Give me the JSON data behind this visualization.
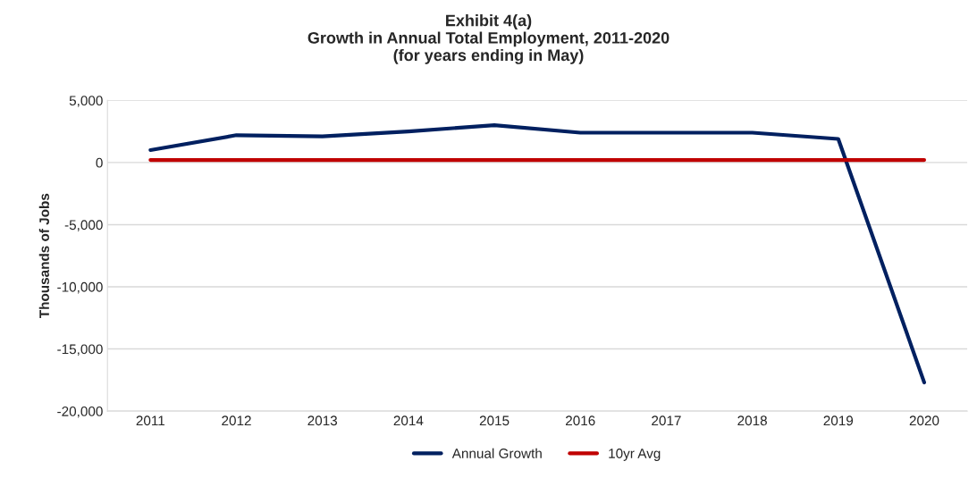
{
  "chart_data": {
    "type": "line",
    "title": "Exhibit 4(a)\nGrowth in Annual Total Employment, 2011-2020\n(for years ending in May)",
    "ylabel": "Thousands of Jobs",
    "categories": [
      "2011",
      "2012",
      "2013",
      "2014",
      "2015",
      "2016",
      "2017",
      "2018",
      "2019",
      "2020"
    ],
    "series": [
      {
        "name": "Annual Growth",
        "color": "#002060",
        "values": [
          1000,
          2200,
          2100,
          2500,
          3000,
          2400,
          2400,
          2400,
          1900,
          -17700
        ]
      },
      {
        "name": "10yr Avg",
        "color": "#c00000",
        "values": [
          200,
          200,
          200,
          200,
          200,
          200,
          200,
          200,
          200,
          200
        ]
      }
    ],
    "ylim": [
      -20000,
      5000
    ],
    "yticks": [
      {
        "value": -20000,
        "label": "-20,000"
      },
      {
        "value": -15000,
        "label": "-15,000"
      },
      {
        "value": -10000,
        "label": "-10,000"
      },
      {
        "value": -5000,
        "label": "-5,000"
      },
      0,
      {
        "value": 5000,
        "label": "5,000"
      }
    ],
    "grid": "y",
    "legend": "bottom",
    "marker": "none",
    "line_style": "solid"
  }
}
